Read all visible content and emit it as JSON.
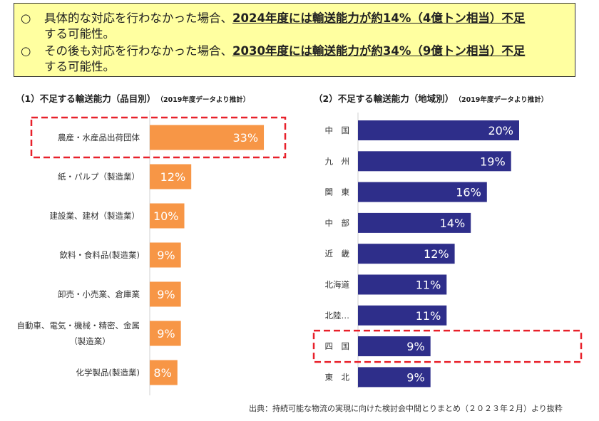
{
  "summary": {
    "bullet": "○",
    "items": [
      {
        "prefix": "具体的な対応を行わなかった場合、",
        "highlight": "2024年度には輸送能力が約14%（4億トン相当）不足",
        "suffix": "する可能性。"
      },
      {
        "prefix": "その後も対応を行わなかった場合、",
        "highlight": "2030年度には輸送能力が約34%（9億トン相当）不足",
        "suffix": "する可能性。"
      }
    ]
  },
  "chart_left": {
    "title": "（1）不足する輸送能力（品目別）",
    "subtitle": "（2019年度データより推計）"
  },
  "chart_right": {
    "title": "（2）不足する輸送能力（地域別）",
    "subtitle": "（2019年度データより推計）"
  },
  "source": "出典：持続可能な物流の実現に向けた検討会中間とりまとめ（２０２３年２月）より抜粋",
  "colors": {
    "orange": "#f79646",
    "navy": "#2e2e8a",
    "highlight_border": "#e8202a",
    "box_bg": "#ffffa0"
  },
  "chart_data": [
    {
      "type": "bar",
      "orientation": "horizontal",
      "title": "（1）不足する輸送能力（品目別）",
      "categories": [
        "農産・水産品出荷団体",
        "紙・パルプ（製造業）",
        "建設業、建材（製造業）",
        "飲料・食料品(製造業)",
        "卸売・小売業、倉庫業",
        "自動車、電気・機械・精密、金属（製造業）",
        "化学製品(製造業)"
      ],
      "category_lines": [
        [
          "農産・水産品出荷団体"
        ],
        [
          "紙・パルプ（製造業）"
        ],
        [
          "建設業、建材（製造業）"
        ],
        [
          "飲料・食料品(製造業)"
        ],
        [
          "卸売・小売業、倉庫業"
        ],
        [
          "自動車、電気・機械・精密、金属",
          "（製造業）"
        ],
        [
          "化学製品(製造業)"
        ]
      ],
      "values": [
        33,
        12,
        10,
        9,
        9,
        9,
        8
      ],
      "labels": [
        "33%",
        "12%",
        "10%",
        "9%",
        "9%",
        "9%",
        "8%"
      ],
      "highlighted": [
        0
      ],
      "color": "#f79646"
    },
    {
      "type": "bar",
      "orientation": "horizontal",
      "title": "（2）不足する輸送能力（地域別）",
      "categories": [
        "中　国",
        "九　州",
        "関　東",
        "中　部",
        "近　畿",
        "北海道",
        "北陸…",
        "四　国",
        "東　北"
      ],
      "category_lines": [
        [
          "中　国"
        ],
        [
          "九　州"
        ],
        [
          "関　東"
        ],
        [
          "中　部"
        ],
        [
          "近　畿"
        ],
        [
          "北海道"
        ],
        [
          "北陸…"
        ],
        [
          "四　国"
        ],
        [
          "東　北"
        ]
      ],
      "values": [
        20,
        19,
        16,
        14,
        12,
        11,
        11,
        9,
        9
      ],
      "labels": [
        "20%",
        "19%",
        "16%",
        "14%",
        "12%",
        "11%",
        "11%",
        "9%",
        "9%"
      ],
      "highlighted": [
        7
      ],
      "color": "#2e2e8a"
    }
  ]
}
